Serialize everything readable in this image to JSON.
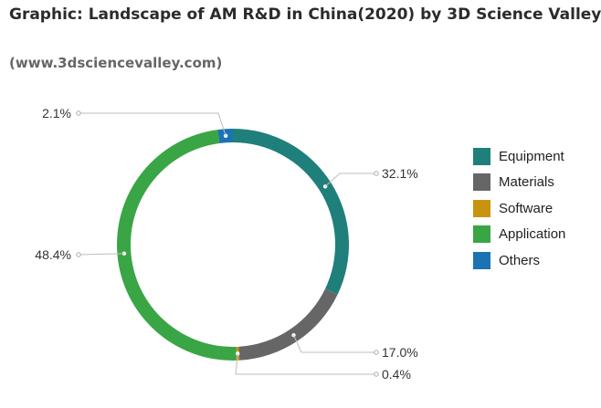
{
  "header": {
    "title": "Graphic: Landscape of AM R&D in China(2020) by 3D Science Valley",
    "subtitle": "(www.3dsciencevalley.com)"
  },
  "chart_data": {
    "type": "pie",
    "variant": "donut",
    "title": "",
    "categories": [
      "Equipment",
      "Materials",
      "Software",
      "Application",
      "Others"
    ],
    "values": [
      32.1,
      17.0,
      0.4,
      48.4,
      2.1
    ],
    "labels": [
      "32.1%",
      "17.0%",
      "0.4%",
      "48.4%",
      "2.1%"
    ],
    "colors": [
      "#1f7f7b",
      "#666666",
      "#c8940f",
      "#3aa545",
      "#1c73b4"
    ],
    "start": "top, clockwise",
    "legend": "right"
  }
}
